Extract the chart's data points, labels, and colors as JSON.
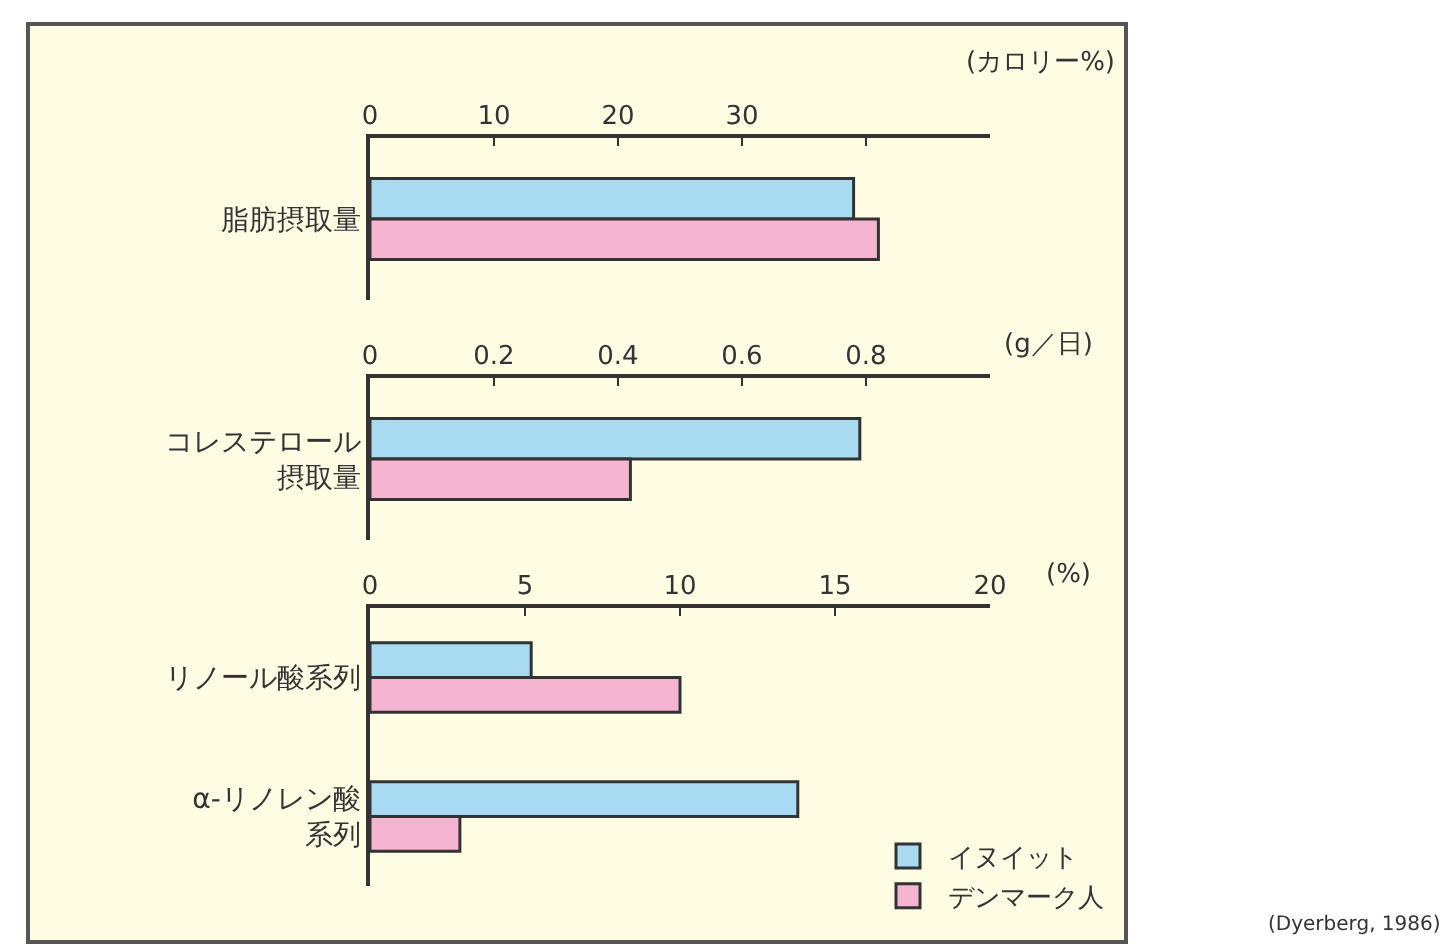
{
  "chart_data": [
    {
      "type": "bar",
      "orientation": "horizontal",
      "categories": [
        "脂肪摂取量"
      ],
      "series": [
        {
          "color": "#a8daf2",
          "values": [
            39
          ]
        },
        {
          "color": "#f5b5d0",
          "values": [
            41
          ]
        }
      ],
      "xlabel": "(カロリー%)",
      "xlim": [
        0,
        50
      ],
      "xticks": [
        0,
        10,
        20,
        30,
        {
          "value": 40,
          "label": null
        }
      ]
    },
    {
      "type": "bar",
      "orientation": "horizontal",
      "categories": [
        "コレステロール摂取量"
      ],
      "series": [
        {
          "color": "#a8daf2",
          "values": [
            0.79
          ]
        },
        {
          "color": "#f5b5d0",
          "values": [
            0.42
          ]
        }
      ],
      "xlabel": "(g／日)",
      "xlim": [
        0,
        1.0
      ],
      "xticks": [
        0,
        0.2,
        0.4,
        0.6,
        0.8
      ]
    },
    {
      "type": "bar",
      "orientation": "horizontal",
      "categories": [
        "リノール酸系列",
        "α-リノレン酸系列"
      ],
      "series": [
        {
          "name": "イヌイット",
          "color": "#a8daf2",
          "values": [
            5.2,
            13.8
          ]
        },
        {
          "name": "デンマーク人",
          "color": "#f5b5d0",
          "values": [
            10,
            2.9
          ]
        }
      ],
      "xlabel": "(%)",
      "xlim": [
        0,
        20
      ],
      "xticks": [
        0,
        5,
        10,
        15,
        20
      ],
      "legend": "bottom right",
      "annotations": [
        "(Dyerberg, 1986)"
      ]
    }
  ]
}
